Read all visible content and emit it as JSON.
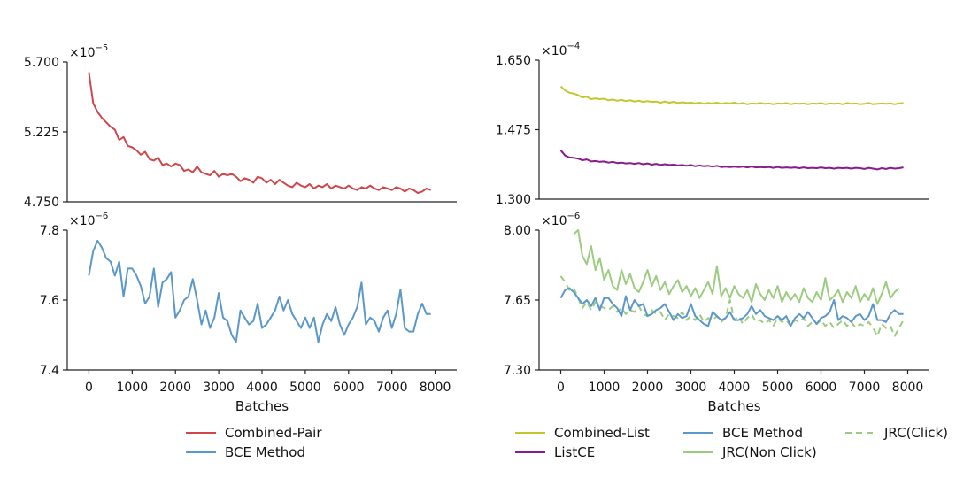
{
  "chart_data": [
    {
      "id": "left-top",
      "type": "line",
      "multiplier": {
        "base": "×10",
        "exp": "−5"
      },
      "ylim": [
        4.75,
        5.7
      ],
      "yticks": [
        {
          "value": 4.75,
          "label": "4.750"
        },
        {
          "value": 5.225,
          "label": "5.225"
        },
        {
          "value": 5.7,
          "label": "5.700"
        }
      ],
      "xlim": [
        -500,
        8500
      ],
      "series": [
        {
          "name": "Combined-Pair",
          "color": "#d0474b",
          "dash": "",
          "x_start": 0,
          "x_step": 100,
          "values": [
            5.63,
            5.42,
            5.36,
            5.32,
            5.29,
            5.26,
            5.24,
            5.17,
            5.19,
            5.13,
            5.12,
            5.1,
            5.07,
            5.09,
            5.04,
            5.03,
            5.05,
            5.0,
            5.01,
            4.99,
            5.01,
            5.0,
            4.96,
            4.97,
            4.95,
            4.99,
            4.95,
            4.94,
            4.93,
            4.96,
            4.92,
            4.94,
            4.93,
            4.94,
            4.92,
            4.89,
            4.91,
            4.9,
            4.88,
            4.92,
            4.91,
            4.88,
            4.9,
            4.87,
            4.9,
            4.88,
            4.86,
            4.85,
            4.88,
            4.86,
            4.85,
            4.87,
            4.84,
            4.86,
            4.85,
            4.87,
            4.84,
            4.86,
            4.85,
            4.84,
            4.86,
            4.84,
            4.83,
            4.85,
            4.84,
            4.86,
            4.84,
            4.83,
            4.85,
            4.84,
            4.83,
            4.85,
            4.84,
            4.82,
            4.84,
            4.83,
            4.81,
            4.82,
            4.84,
            4.83
          ]
        }
      ]
    },
    {
      "id": "left-bottom",
      "type": "line",
      "multiplier": {
        "base": "×10",
        "exp": "−6"
      },
      "ylim": [
        7.4,
        7.8
      ],
      "yticks": [
        {
          "value": 7.4,
          "label": "7.4"
        },
        {
          "value": 7.6,
          "label": "7.6"
        },
        {
          "value": 7.8,
          "label": "7.8"
        }
      ],
      "xlim": [
        -500,
        8500
      ],
      "xticks": [
        0,
        1000,
        2000,
        3000,
        4000,
        5000,
        6000,
        7000,
        8000
      ],
      "xlabel": "Batches",
      "series": [
        {
          "name": "BCE Method",
          "color": "#5b98c9",
          "dash": "",
          "x_start": 0,
          "x_step": 100,
          "values": [
            7.67,
            7.74,
            7.77,
            7.75,
            7.72,
            7.71,
            7.67,
            7.71,
            7.61,
            7.69,
            7.69,
            7.67,
            7.64,
            7.59,
            7.61,
            7.69,
            7.58,
            7.65,
            7.66,
            7.68,
            7.55,
            7.57,
            7.6,
            7.61,
            7.66,
            7.6,
            7.53,
            7.57,
            7.52,
            7.55,
            7.62,
            7.55,
            7.54,
            7.5,
            7.48,
            7.57,
            7.55,
            7.53,
            7.54,
            7.59,
            7.52,
            7.53,
            7.55,
            7.57,
            7.61,
            7.57,
            7.6,
            7.56,
            7.54,
            7.52,
            7.55,
            7.52,
            7.55,
            7.48,
            7.53,
            7.56,
            7.54,
            7.58,
            7.53,
            7.5,
            7.53,
            7.55,
            7.58,
            7.65,
            7.53,
            7.55,
            7.54,
            7.51,
            7.55,
            7.57,
            7.52,
            7.56,
            7.63,
            7.52,
            7.51,
            7.51,
            7.56,
            7.59,
            7.56,
            7.56
          ]
        }
      ]
    },
    {
      "id": "right-top",
      "type": "line",
      "multiplier": {
        "base": "×10",
        "exp": "−4"
      },
      "ylim": [
        1.3,
        1.65
      ],
      "yticks": [
        {
          "value": 1.3,
          "label": "1.300"
        },
        {
          "value": 1.475,
          "label": "1.475"
        },
        {
          "value": 1.65,
          "label": "1.650"
        }
      ],
      "xlim": [
        -500,
        8500
      ],
      "series": [
        {
          "name": "Combined-List",
          "color": "#c3c72d",
          "dash": "",
          "x_start": 0,
          "x_step": 100,
          "values": [
            1.584,
            1.574,
            1.568,
            1.566,
            1.562,
            1.556,
            1.558,
            1.552,
            1.554,
            1.552,
            1.553,
            1.549,
            1.551,
            1.548,
            1.55,
            1.547,
            1.549,
            1.546,
            1.548,
            1.545,
            1.547,
            1.545,
            1.546,
            1.543,
            1.546,
            1.543,
            1.545,
            1.542,
            1.544,
            1.542,
            1.543,
            1.541,
            1.543,
            1.54,
            1.542,
            1.541,
            1.543,
            1.54,
            1.542,
            1.541,
            1.543,
            1.54,
            1.542,
            1.539,
            1.541,
            1.54,
            1.542,
            1.54,
            1.541,
            1.539,
            1.541,
            1.54,
            1.542,
            1.539,
            1.541,
            1.54,
            1.541,
            1.539,
            1.541,
            1.54,
            1.542,
            1.539,
            1.541,
            1.54,
            1.541,
            1.539,
            1.542,
            1.54,
            1.541,
            1.539,
            1.54,
            1.542,
            1.539,
            1.54,
            1.541,
            1.54,
            1.541,
            1.539,
            1.541,
            1.542
          ]
        },
        {
          "name": "ListCE",
          "color": "#8a1a8e",
          "dash": "",
          "x_start": 0,
          "x_step": 100,
          "values": [
            1.423,
            1.41,
            1.405,
            1.404,
            1.402,
            1.398,
            1.4,
            1.395,
            1.396,
            1.394,
            1.395,
            1.392,
            1.394,
            1.391,
            1.392,
            1.39,
            1.391,
            1.389,
            1.391,
            1.388,
            1.39,
            1.387,
            1.389,
            1.386,
            1.388,
            1.386,
            1.387,
            1.385,
            1.386,
            1.384,
            1.386,
            1.383,
            1.385,
            1.383,
            1.384,
            1.382,
            1.384,
            1.381,
            1.382,
            1.381,
            1.382,
            1.381,
            1.382,
            1.38,
            1.382,
            1.38,
            1.381,
            1.38,
            1.381,
            1.379,
            1.381,
            1.379,
            1.38,
            1.379,
            1.38,
            1.378,
            1.38,
            1.378,
            1.379,
            1.378,
            1.38,
            1.378,
            1.379,
            1.377,
            1.379,
            1.378,
            1.379,
            1.377,
            1.379,
            1.378,
            1.376,
            1.379,
            1.377,
            1.375,
            1.378,
            1.376,
            1.379,
            1.377,
            1.378,
            1.38
          ]
        }
      ]
    },
    {
      "id": "right-bottom",
      "type": "line",
      "multiplier": {
        "base": "×10",
        "exp": "−6"
      },
      "ylim": [
        7.3,
        8.0
      ],
      "yticks": [
        {
          "value": 7.3,
          "label": "7.30"
        },
        {
          "value": 7.65,
          "label": "7.65"
        },
        {
          "value": 8.0,
          "label": "8.00"
        }
      ],
      "xlim": [
        -500,
        8500
      ],
      "xticks": [
        0,
        1000,
        2000,
        3000,
        4000,
        5000,
        6000,
        7000,
        8000
      ],
      "xlabel": "Batches",
      "series": [
        {
          "name": "JRC(Non Click)",
          "color": "#9ccc7f",
          "dash": "",
          "x_start": 300,
          "x_step": 100,
          "values": [
            7.98,
            8.0,
            7.87,
            7.83,
            7.92,
            7.8,
            7.86,
            7.75,
            7.8,
            7.72,
            7.7,
            7.8,
            7.73,
            7.78,
            7.71,
            7.69,
            7.74,
            7.8,
            7.72,
            7.77,
            7.7,
            7.74,
            7.68,
            7.72,
            7.75,
            7.69,
            7.72,
            7.67,
            7.71,
            7.66,
            7.7,
            7.74,
            7.68,
            7.82,
            7.67,
            7.71,
            7.66,
            7.72,
            7.68,
            7.66,
            7.7,
            7.64,
            7.73,
            7.68,
            7.65,
            7.7,
            7.66,
            7.72,
            7.64,
            7.69,
            7.65,
            7.68,
            7.64,
            7.71,
            7.66,
            7.64,
            7.69,
            7.65,
            7.76,
            7.65,
            7.67,
            7.7,
            7.64,
            7.69,
            7.66,
            7.72,
            7.64,
            7.68,
            7.65,
            7.71,
            7.63,
            7.68,
            7.74,
            7.66,
            7.69,
            7.71
          ]
        },
        {
          "name": "JRC(Click)",
          "color": "#9ccc7f",
          "dash": "7,5",
          "x_start": 0,
          "x_step": 100,
          "values": [
            7.77,
            7.74,
            7.7,
            7.71,
            7.66,
            7.61,
            7.64,
            7.6,
            7.64,
            7.62,
            7.61,
            7.6,
            7.62,
            7.59,
            7.61,
            7.58,
            7.6,
            7.59,
            7.62,
            7.58,
            7.57,
            7.6,
            7.58,
            7.59,
            7.55,
            7.58,
            7.57,
            7.56,
            7.59,
            7.55,
            7.57,
            7.55,
            7.58,
            7.54,
            7.56,
            7.55,
            7.57,
            7.54,
            7.56,
            7.65,
            7.55,
            7.57,
            7.53,
            7.56,
            7.58,
            7.54,
            7.55,
            7.53,
            7.55,
            7.52,
            7.56,
            7.54,
            7.55,
            7.52,
            7.55,
            7.54,
            7.56,
            7.52,
            7.54,
            7.53,
            7.55,
            7.52,
            7.54,
            7.51,
            7.53,
            7.55,
            7.52,
            7.54,
            7.51,
            7.53,
            7.52,
            7.54,
            7.51,
            7.47,
            7.53,
            7.51,
            7.52,
            7.47,
            7.51,
            7.55
          ]
        },
        {
          "name": "BCE Method",
          "color": "#5b98c9",
          "dash": "",
          "x_start": 0,
          "x_step": 100,
          "values": [
            7.66,
            7.7,
            7.71,
            7.69,
            7.66,
            7.63,
            7.65,
            7.62,
            7.66,
            7.6,
            7.66,
            7.66,
            7.63,
            7.61,
            7.57,
            7.67,
            7.6,
            7.65,
            7.62,
            7.63,
            7.57,
            7.58,
            7.6,
            7.61,
            7.63,
            7.59,
            7.55,
            7.58,
            7.56,
            7.57,
            7.63,
            7.57,
            7.55,
            7.53,
            7.52,
            7.59,
            7.57,
            7.55,
            7.56,
            7.59,
            7.55,
            7.55,
            7.56,
            7.58,
            7.62,
            7.58,
            7.6,
            7.57,
            7.56,
            7.55,
            7.57,
            7.55,
            7.57,
            7.52,
            7.56,
            7.58,
            7.56,
            7.59,
            7.56,
            7.53,
            7.56,
            7.57,
            7.59,
            7.65,
            7.55,
            7.57,
            7.56,
            7.54,
            7.57,
            7.58,
            7.55,
            7.57,
            7.63,
            7.55,
            7.55,
            7.54,
            7.58,
            7.6,
            7.58,
            7.58
          ]
        }
      ]
    }
  ],
  "legends": {
    "left": [
      {
        "name": "Combined-Pair",
        "color": "#d0474b",
        "dash": ""
      },
      {
        "name": "BCE Method",
        "color": "#5b98c9",
        "dash": ""
      }
    ],
    "right": [
      {
        "name": "Combined-List",
        "color": "#c3c72d",
        "dash": ""
      },
      {
        "name": "ListCE",
        "color": "#8a1a8e",
        "dash": ""
      },
      {
        "name": "BCE Method",
        "color": "#5b98c9",
        "dash": ""
      },
      {
        "name": "JRC(Non Click)",
        "color": "#9ccc7f",
        "dash": ""
      },
      {
        "name": "JRC(Click)",
        "color": "#9ccc7f",
        "dash": "7,5"
      }
    ]
  }
}
